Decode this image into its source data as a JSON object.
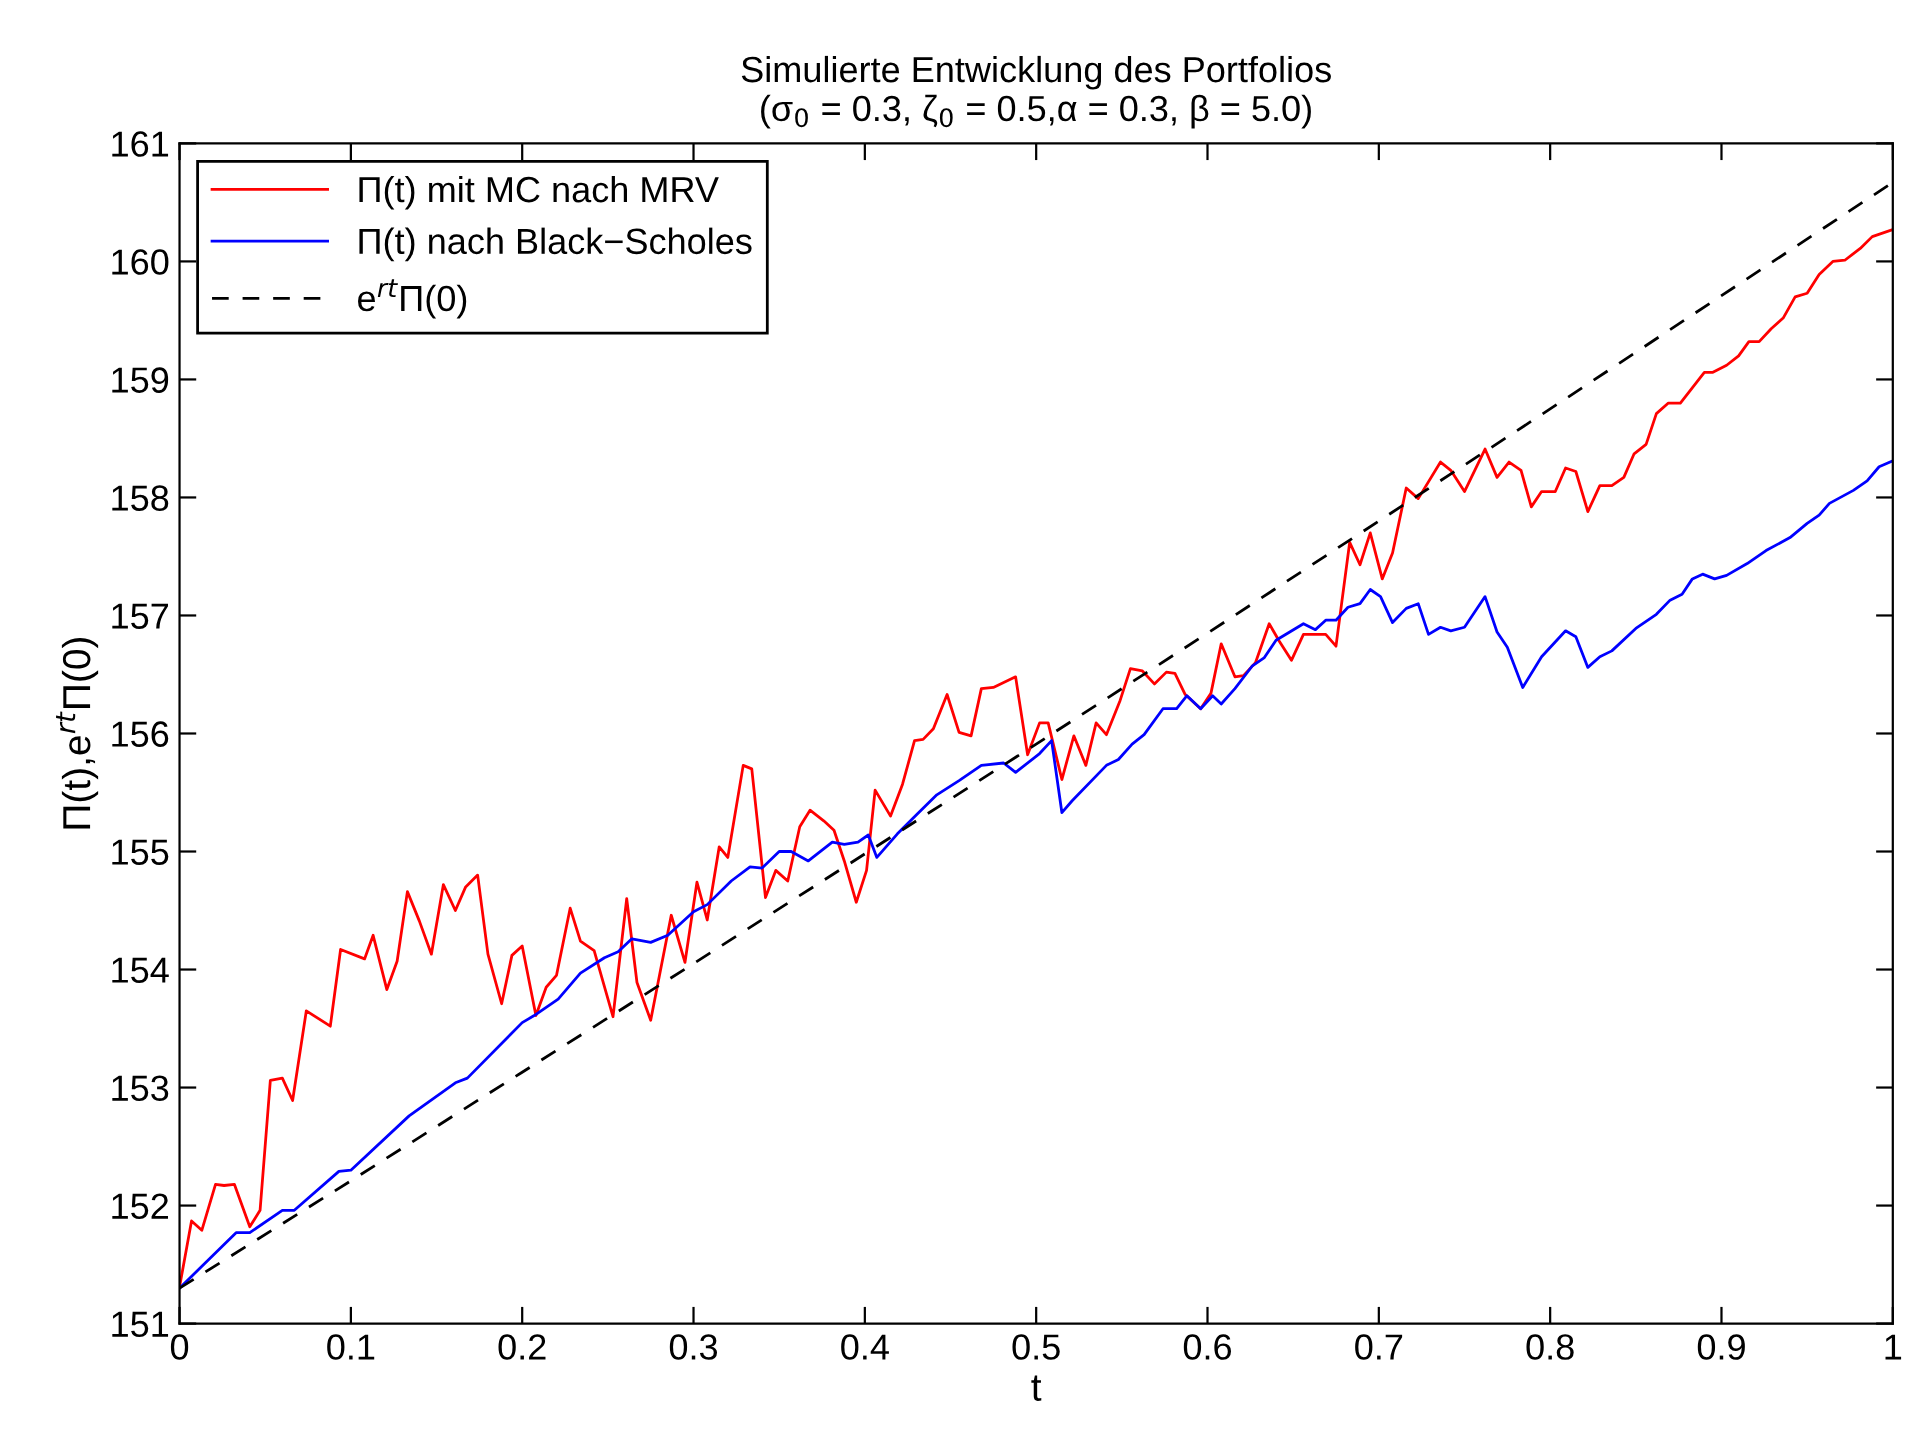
{
  "chart_data": {
    "type": "line",
    "title": "Simulierte Entwicklung des Portfolios\n(σ$_{0}$ = 0.3, ζ$_{0}$ = 0.5,α = 0.3, β = 5.0)",
    "xlabel": "t",
    "ylabel": "Π(t),e$^{rt}$Π(0)",
    "xlim": [
      0,
      1
    ],
    "ylim": [
      151,
      161
    ],
    "xticks": [
      0,
      0.1,
      0.2,
      0.3,
      0.4,
      0.5,
      0.6,
      0.7,
      0.8,
      0.9,
      1
    ],
    "yticks": [
      151,
      152,
      153,
      154,
      155,
      156,
      157,
      158,
      159,
      160,
      161
    ],
    "grid": false,
    "legend": "top left",
    "marker": "none",
    "series": [
      {
        "name": "Π(t) mit MC nach MRV",
        "color": "#ff0000",
        "line_style": "solid",
        "x": [
          0,
          0.007,
          0.013,
          0.021,
          0.026,
          0.032,
          0.041,
          0.047,
          0.053,
          0.06,
          0.066,
          0.074,
          0.088,
          0.094,
          0.108,
          0.113,
          0.121,
          0.127,
          0.133,
          0.14,
          0.147,
          0.154,
          0.161,
          0.167,
          0.174,
          0.18,
          0.188,
          0.194,
          0.2,
          0.208,
          0.214,
          0.22,
          0.228,
          0.234,
          0.242,
          0.253,
          0.261,
          0.267,
          0.275,
          0.287,
          0.295,
          0.302,
          0.308,
          0.315,
          0.32,
          0.329,
          0.334,
          0.342,
          0.348,
          0.355,
          0.362,
          0.368,
          0.376,
          0.382,
          0.388,
          0.395,
          0.401,
          0.406,
          0.415,
          0.422,
          0.429,
          0.434,
          0.44,
          0.448,
          0.455,
          0.462,
          0.468,
          0.475,
          0.488,
          0.495,
          0.502,
          0.507,
          0.515,
          0.522,
          0.529,
          0.535,
          0.541,
          0.549,
          0.555,
          0.562,
          0.569,
          0.576,
          0.581,
          0.587,
          0.596,
          0.602,
          0.608,
          0.616,
          0.621,
          0.628,
          0.636,
          0.642,
          0.649,
          0.656,
          0.669,
          0.675,
          0.683,
          0.689,
          0.695,
          0.702,
          0.708,
          0.716,
          0.723,
          0.736,
          0.742,
          0.75,
          0.762,
          0.769,
          0.776,
          0.783,
          0.789,
          0.795,
          0.803,
          0.809,
          0.815,
          0.822,
          0.829,
          0.836,
          0.843,
          0.849,
          0.856,
          0.862,
          0.869,
          0.876,
          0.89,
          0.895,
          0.903,
          0.91,
          0.916,
          0.922,
          0.929,
          0.936,
          0.943,
          0.95,
          0.957,
          0.965,
          0.972,
          0.981,
          0.988,
          1
        ],
        "values": [
          151.31,
          151.87,
          151.79,
          152.18,
          152.17,
          152.18,
          151.82,
          151.96,
          153.06,
          153.08,
          152.89,
          153.65,
          153.52,
          154.17,
          154.09,
          154.29,
          153.83,
          154.07,
          154.66,
          154.41,
          154.13,
          154.72,
          154.5,
          154.7,
          154.8,
          154.13,
          153.71,
          154.12,
          154.2,
          153.61,
          153.85,
          153.95,
          154.52,
          154.24,
          154.16,
          153.6,
          154.6,
          153.89,
          153.57,
          154.46,
          154.06,
          154.74,
          154.42,
          155.04,
          154.95,
          155.73,
          155.7,
          154.61,
          154.84,
          154.75,
          155.21,
          155.35,
          155.26,
          155.18,
          154.92,
          154.57,
          154.84,
          155.52,
          155.3,
          155.57,
          155.94,
          155.95,
          156.04,
          156.33,
          156.01,
          155.98,
          156.38,
          156.39,
          156.48,
          155.82,
          156.09,
          156.09,
          155.61,
          155.98,
          155.73,
          156.09,
          155.99,
          156.28,
          156.55,
          156.53,
          156.42,
          156.52,
          156.51,
          156.33,
          156.21,
          156.34,
          156.76,
          156.48,
          156.49,
          156.6,
          156.93,
          156.78,
          156.62,
          156.84,
          156.84,
          156.74,
          157.62,
          157.43,
          157.7,
          157.31,
          157.53,
          158.08,
          157.99,
          158.3,
          158.23,
          158.05,
          158.41,
          158.17,
          158.3,
          158.23,
          157.92,
          158.05,
          158.05,
          158.25,
          158.22,
          157.88,
          158.1,
          158.1,
          158.17,
          158.37,
          158.45,
          158.71,
          158.8,
          158.8,
          159.06,
          159.06,
          159.12,
          159.2,
          159.32,
          159.32,
          159.43,
          159.52,
          159.7,
          159.73,
          159.89,
          160.0,
          160.01,
          160.11,
          160.21,
          160.27
        ]
      },
      {
        "name": "Π(t) nach Black−Scholes",
        "color": "#0000ff",
        "line_style": "solid",
        "x": [
          0,
          0.033,
          0.041,
          0.06,
          0.067,
          0.093,
          0.1,
          0.134,
          0.161,
          0.168,
          0.2,
          0.207,
          0.221,
          0.234,
          0.248,
          0.256,
          0.264,
          0.275,
          0.285,
          0.3,
          0.308,
          0.322,
          0.333,
          0.34,
          0.35,
          0.357,
          0.367,
          0.381,
          0.388,
          0.396,
          0.402,
          0.407,
          0.419,
          0.43,
          0.442,
          0.455,
          0.468,
          0.481,
          0.488,
          0.502,
          0.509,
          0.515,
          0.521,
          0.541,
          0.548,
          0.556,
          0.563,
          0.574,
          0.582,
          0.588,
          0.596,
          0.603,
          0.608,
          0.616,
          0.626,
          0.633,
          0.64,
          0.648,
          0.656,
          0.663,
          0.669,
          0.675,
          0.682,
          0.689,
          0.695,
          0.701,
          0.708,
          0.716,
          0.723,
          0.729,
          0.736,
          0.742,
          0.75,
          0.762,
          0.769,
          0.775,
          0.784,
          0.795,
          0.802,
          0.809,
          0.815,
          0.822,
          0.829,
          0.836,
          0.85,
          0.862,
          0.87,
          0.877,
          0.883,
          0.889,
          0.896,
          0.903,
          0.915,
          0.926,
          0.94,
          0.95,
          0.957,
          0.963,
          0.977,
          0.985,
          0.992,
          1
        ],
        "values": [
          151.3,
          151.77,
          151.77,
          151.96,
          151.96,
          152.29,
          152.3,
          152.76,
          153.04,
          153.08,
          153.55,
          153.61,
          153.75,
          153.97,
          154.1,
          154.15,
          154.26,
          154.23,
          154.29,
          154.49,
          154.55,
          154.75,
          154.87,
          154.86,
          155.0,
          155.0,
          154.92,
          155.08,
          155.06,
          155.08,
          155.14,
          154.95,
          155.15,
          155.31,
          155.48,
          155.6,
          155.73,
          155.75,
          155.67,
          155.83,
          155.94,
          155.33,
          155.43,
          155.73,
          155.78,
          155.91,
          155.99,
          156.21,
          156.21,
          156.32,
          156.21,
          156.32,
          156.25,
          156.38,
          156.57,
          156.64,
          156.79,
          156.86,
          156.93,
          156.88,
          156.96,
          156.96,
          157.07,
          157.1,
          157.22,
          157.16,
          156.94,
          157.06,
          157.1,
          156.84,
          156.9,
          156.87,
          156.9,
          157.16,
          156.86,
          156.73,
          156.39,
          156.65,
          156.76,
          156.87,
          156.82,
          156.56,
          156.65,
          156.7,
          156.89,
          157.01,
          157.13,
          157.18,
          157.31,
          157.35,
          157.31,
          157.34,
          157.44,
          157.55,
          157.66,
          157.78,
          157.85,
          157.95,
          158.06,
          158.14,
          158.26,
          158.31
        ]
      },
      {
        "name": "e$^{rt}$Π(0)",
        "color": "#000000",
        "line_style": "dashed",
        "x": [
          0,
          0.1,
          0.2,
          0.3,
          0.4,
          0.5,
          0.6,
          0.7,
          0.8,
          0.9,
          1
        ],
        "values": [
          151.3,
          152.21,
          153.13,
          154.05,
          154.98,
          155.91,
          156.85,
          157.8,
          158.75,
          159.71,
          160.67
        ]
      }
    ]
  }
}
